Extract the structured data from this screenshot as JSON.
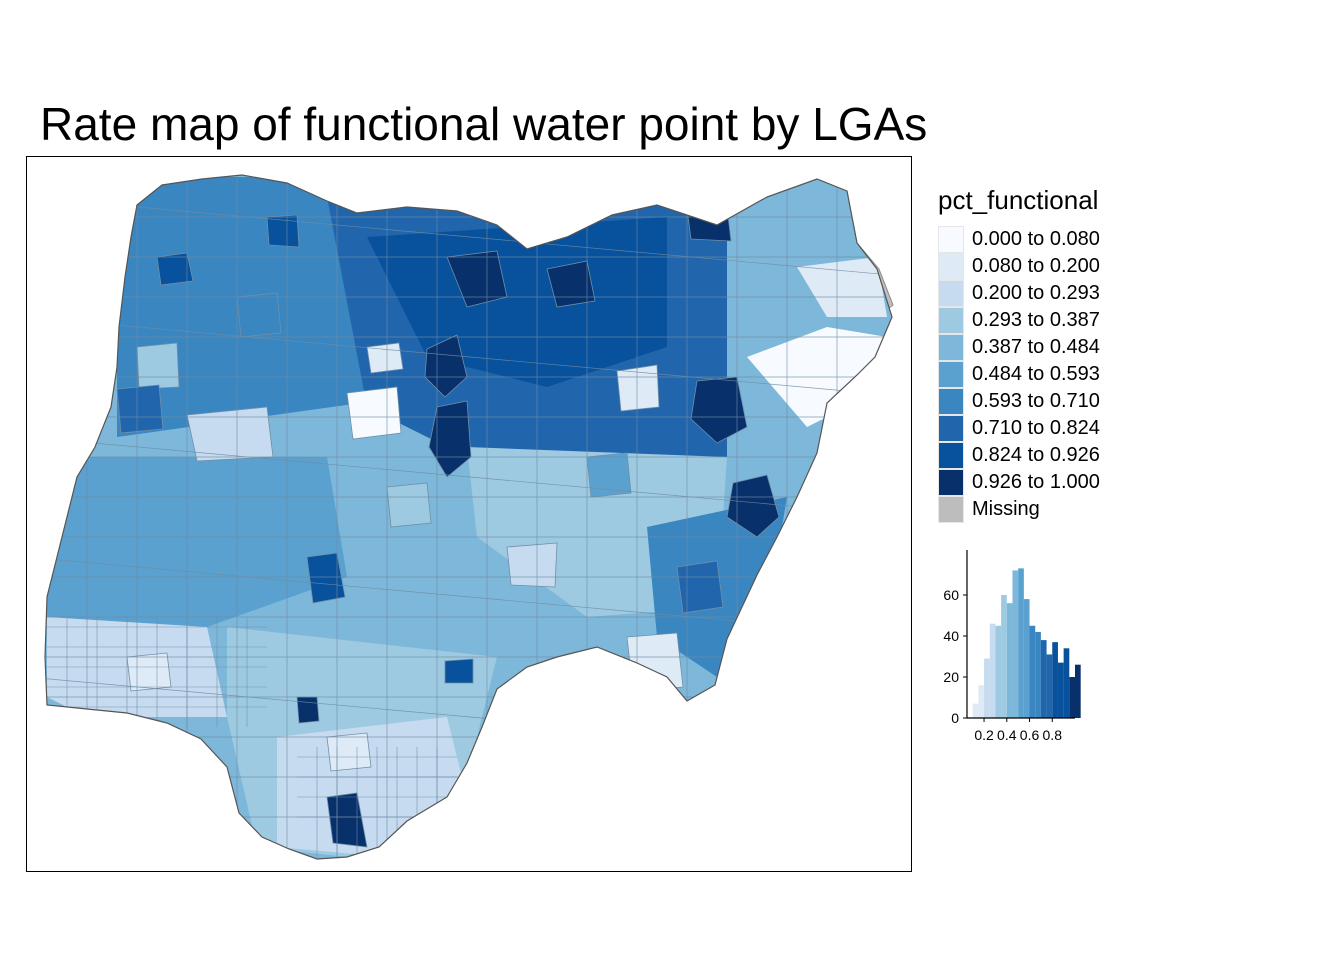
{
  "title": "Rate map of functional water point by LGAs",
  "legend": {
    "title": "pct_functional",
    "items": [
      {
        "label": "0.000 to 0.080",
        "color": "#f7fbff"
      },
      {
        "label": "0.080 to 0.200",
        "color": "#deebf7"
      },
      {
        "label": "0.200 to 0.293",
        "color": "#c6dbef"
      },
      {
        "label": "0.293 to 0.387",
        "color": "#9ecae1"
      },
      {
        "label": "0.387 to 0.484",
        "color": "#7db8da"
      },
      {
        "label": "0.484 to 0.593",
        "color": "#5aa1cf"
      },
      {
        "label": "0.593 to 0.710",
        "color": "#3a86c1"
      },
      {
        "label": "0.710 to 0.824",
        "color": "#2166ac"
      },
      {
        "label": "0.824 to 0.926",
        "color": "#08519c"
      },
      {
        "label": "0.926 to 1.000",
        "color": "#08306b"
      },
      {
        "label": "Missing",
        "color": "#bdbdbd"
      }
    ]
  },
  "chart_data": {
    "type": "bar",
    "title": "",
    "xlabel": "",
    "ylabel": "",
    "x_ticks": [
      "0.2",
      "0.4",
      "0.6",
      "0.8"
    ],
    "y_ticks": [
      "0",
      "20",
      "40",
      "60"
    ],
    "ylim": [
      0,
      80
    ],
    "xlim": [
      0.05,
      1.0
    ],
    "bin_width": 0.05,
    "bins": [
      {
        "x0": 0.1,
        "value": 7
      },
      {
        "x0": 0.15,
        "value": 16
      },
      {
        "x0": 0.2,
        "value": 29
      },
      {
        "x0": 0.25,
        "value": 46
      },
      {
        "x0": 0.3,
        "value": 45
      },
      {
        "x0": 0.35,
        "value": 60
      },
      {
        "x0": 0.4,
        "value": 56
      },
      {
        "x0": 0.45,
        "value": 72
      },
      {
        "x0": 0.5,
        "value": 73
      },
      {
        "x0": 0.55,
        "value": 58
      },
      {
        "x0": 0.6,
        "value": 45
      },
      {
        "x0": 0.65,
        "value": 42
      },
      {
        "x0": 0.7,
        "value": 38
      },
      {
        "x0": 0.75,
        "value": 31
      },
      {
        "x0": 0.8,
        "value": 37
      },
      {
        "x0": 0.85,
        "value": 27
      },
      {
        "x0": 0.9,
        "value": 34
      },
      {
        "x0": 0.95,
        "value": 20
      },
      {
        "x0": 1.0,
        "value": 26
      }
    ]
  }
}
